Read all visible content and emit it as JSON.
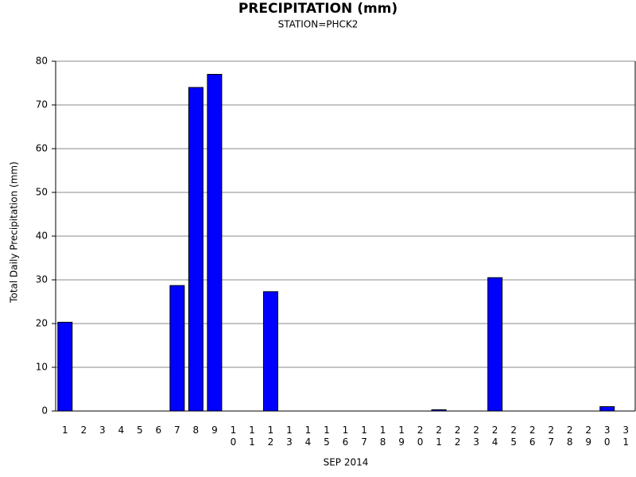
{
  "chart_data": {
    "type": "bar",
    "title": "PRECIPITATION (mm)",
    "subtitle": "STATION=PHCK2",
    "x_label": "SEP 2014",
    "y_label": "Total Daily Precipitation (mm)",
    "categories": [
      "1",
      "2",
      "3",
      "4",
      "5",
      "6",
      "7",
      "8",
      "9",
      "10",
      "11",
      "12",
      "13",
      "14",
      "15",
      "16",
      "17",
      "18",
      "19",
      "20",
      "21",
      "22",
      "23",
      "24",
      "25",
      "26",
      "27",
      "28",
      "29",
      "30",
      "31"
    ],
    "values": [
      20.3,
      0,
      0,
      0,
      0,
      0,
      28.7,
      74,
      77,
      0,
      0,
      27.3,
      0,
      0,
      0,
      0,
      0,
      0,
      0,
      0,
      0.3,
      0,
      0,
      30.5,
      0,
      0,
      0,
      0,
      0,
      1.0,
      0
    ],
    "color": "#0000ff",
    "ylim": [
      0,
      80
    ],
    "yticks": [
      0,
      10,
      20,
      30,
      40,
      50,
      60,
      70,
      80
    ],
    "grid": true
  }
}
